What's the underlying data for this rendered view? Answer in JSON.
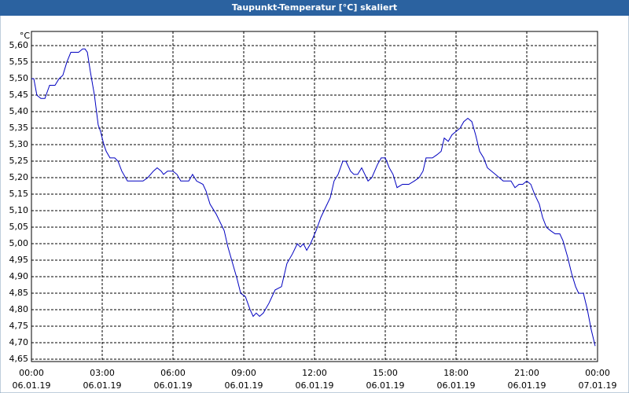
{
  "chart_data": {
    "type": "line",
    "title": "Taupunkt-Temperatur [°C] skaliert",
    "y_unit": "°C",
    "color": "#0000c0",
    "grid": true,
    "x": [
      0,
      0.1,
      0.23,
      0.4,
      0.57,
      0.77,
      1,
      1.17,
      1.33,
      1.5,
      1.67,
      2,
      2.17,
      2.27,
      2.37,
      2.5,
      2.67,
      2.83,
      2.93,
      3.07,
      3.17,
      3.33,
      3.53,
      3.67,
      3.83,
      4.07,
      4.5,
      4.73,
      4.93,
      5.17,
      5.33,
      5.5,
      5.6,
      5.77,
      5.9,
      6,
      6.17,
      6.33,
      6.67,
      6.83,
      7,
      7.27,
      7.4,
      7.57,
      7.83,
      8.17,
      8.33,
      8.53,
      8.73,
      8.87,
      9.07,
      9.27,
      9.4,
      9.53,
      9.67,
      9.83,
      10.07,
      10.33,
      10.6,
      10.83,
      11.07,
      11.27,
      11.4,
      11.53,
      11.67,
      11.83,
      12.07,
      12.27,
      12.47,
      12.67,
      12.83,
      13,
      13.2,
      13.33,
      13.53,
      13.67,
      13.83,
      14,
      14.27,
      14.43,
      14.67,
      14.83,
      15,
      15.17,
      15.33,
      15.5,
      15.73,
      16,
      16.23,
      16.43,
      16.6,
      16.73,
      17,
      17.2,
      17.37,
      17.5,
      17.67,
      17.83,
      18,
      18.17,
      18.33,
      18.5,
      18.67,
      18.83,
      19,
      19.17,
      19.33,
      19.67,
      20,
      20.33,
      20.5,
      20.67,
      20.83,
      21,
      21.17,
      21.33,
      21.53,
      21.67,
      21.83,
      22,
      22.2,
      22.4,
      22.53,
      22.73,
      22.9,
      23.07,
      23.2,
      23.4,
      23.57,
      23.73,
      23.9
    ],
    "values": [
      5.5,
      5.5,
      5.45,
      5.44,
      5.44,
      5.48,
      5.48,
      5.5,
      5.51,
      5.55,
      5.58,
      5.58,
      5.59,
      5.59,
      5.58,
      5.52,
      5.45,
      5.36,
      5.34,
      5.3,
      5.28,
      5.26,
      5.26,
      5.25,
      5.22,
      5.19,
      5.19,
      5.19,
      5.2,
      5.22,
      5.23,
      5.22,
      5.21,
      5.22,
      5.22,
      5.22,
      5.21,
      5.19,
      5.19,
      5.21,
      5.19,
      5.18,
      5.16,
      5.12,
      5.09,
      5.04,
      4.99,
      4.94,
      4.89,
      4.85,
      4.84,
      4.8,
      4.78,
      4.79,
      4.78,
      4.79,
      4.82,
      4.86,
      4.87,
      4.94,
      4.97,
      5.0,
      4.99,
      5.0,
      4.98,
      5.0,
      5.04,
      5.08,
      5.11,
      5.14,
      5.19,
      5.21,
      5.25,
      5.25,
      5.22,
      5.21,
      5.21,
      5.23,
      5.19,
      5.2,
      5.24,
      5.26,
      5.26,
      5.23,
      5.21,
      5.17,
      5.18,
      5.18,
      5.19,
      5.2,
      5.22,
      5.26,
      5.26,
      5.27,
      5.28,
      5.32,
      5.31,
      5.33,
      5.34,
      5.35,
      5.37,
      5.38,
      5.37,
      5.33,
      5.28,
      5.26,
      5.23,
      5.21,
      5.19,
      5.19,
      5.17,
      5.18,
      5.18,
      5.19,
      5.18,
      5.15,
      5.12,
      5.08,
      5.05,
      5.04,
      5.03,
      5.03,
      5.01,
      4.96,
      4.91,
      4.87,
      4.85,
      4.85,
      4.8,
      4.74,
      4.69
    ],
    "xlim": [
      0,
      24
    ],
    "xticks": [
      {
        "value": 0,
        "label": [
          "00:00",
          "06.01.19"
        ]
      },
      {
        "value": 3,
        "label": [
          "03:00",
          "06.01.19"
        ]
      },
      {
        "value": 6,
        "label": [
          "06:00",
          "06.01.19"
        ]
      },
      {
        "value": 9,
        "label": [
          "09:00",
          "06.01.19"
        ]
      },
      {
        "value": 12,
        "label": [
          "12:00",
          "06.01.19"
        ]
      },
      {
        "value": 15,
        "label": [
          "15:00",
          "06.01.19"
        ]
      },
      {
        "value": 18,
        "label": [
          "18:00",
          "06.01.19"
        ]
      },
      {
        "value": 21,
        "label": [
          "21:00",
          "06.01.19"
        ]
      },
      {
        "value": 24,
        "label": [
          "00:00",
          "07.01.19"
        ]
      }
    ],
    "ylim": [
      4.643,
      5.643
    ],
    "yticks": [
      {
        "value": 4.65,
        "label": "4,65"
      },
      {
        "value": 4.7,
        "label": "4,70"
      },
      {
        "value": 4.75,
        "label": "4,75"
      },
      {
        "value": 4.8,
        "label": "4,80"
      },
      {
        "value": 4.85,
        "label": "4,85"
      },
      {
        "value": 4.9,
        "label": "4,90"
      },
      {
        "value": 4.95,
        "label": "4,95"
      },
      {
        "value": 5,
        "label": "5,00"
      },
      {
        "value": 5.05,
        "label": "5,05"
      },
      {
        "value": 5.1,
        "label": "5,10"
      },
      {
        "value": 5.15,
        "label": "5,15"
      },
      {
        "value": 5.2,
        "label": "5,20"
      },
      {
        "value": 5.25,
        "label": "5,25"
      },
      {
        "value": 5.3,
        "label": "5,30"
      },
      {
        "value": 5.35,
        "label": "5,35"
      },
      {
        "value": 5.4,
        "label": "5,40"
      },
      {
        "value": 5.45,
        "label": "5,45"
      },
      {
        "value": 5.5,
        "label": "5,50"
      },
      {
        "value": 5.55,
        "label": "5,55"
      },
      {
        "value": 5.6,
        "label": "5,60"
      }
    ]
  }
}
